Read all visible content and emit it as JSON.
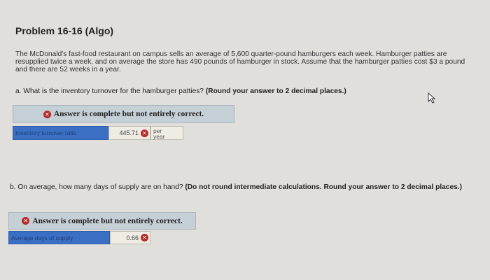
{
  "title": "Problem 16-16 (Algo)",
  "intro": "The McDonald's fast-food restaurant on campus sells an average of 5,600 quarter-pound hamburgers each week. Hamburger patties are resupplied twice a week, and on average the store has 490 pounds of hamburger in stock. Assume that the hamburger patties cost $3 a pound and there are 52 weeks in a year.",
  "part_a": {
    "question": "a. What is the inventory turnover for the hamburger patties?",
    "instruction": "(Round your answer to 2 decimal places.)",
    "banner": "Answer is complete but not entirely correct.",
    "label": "Inventory turnover ratio",
    "value": "445.71",
    "unit_line1": "per",
    "unit_line2": "year"
  },
  "part_b": {
    "question": "b. On average, how many days of supply are on hand?",
    "instruction": "(Do not round intermediate calculations. Round your answer to 2 decimal places.)",
    "banner": "Answer is complete but not entirely correct.",
    "label": "Average days of supply",
    "value": "0.66"
  },
  "icons": {
    "incorrect": "x-circle-icon",
    "cursor": "mouse-pointer-icon"
  },
  "colors": {
    "banner": "#c5cfd6",
    "label_cell": "#3a6fc4",
    "error": "#b52a2a"
  }
}
